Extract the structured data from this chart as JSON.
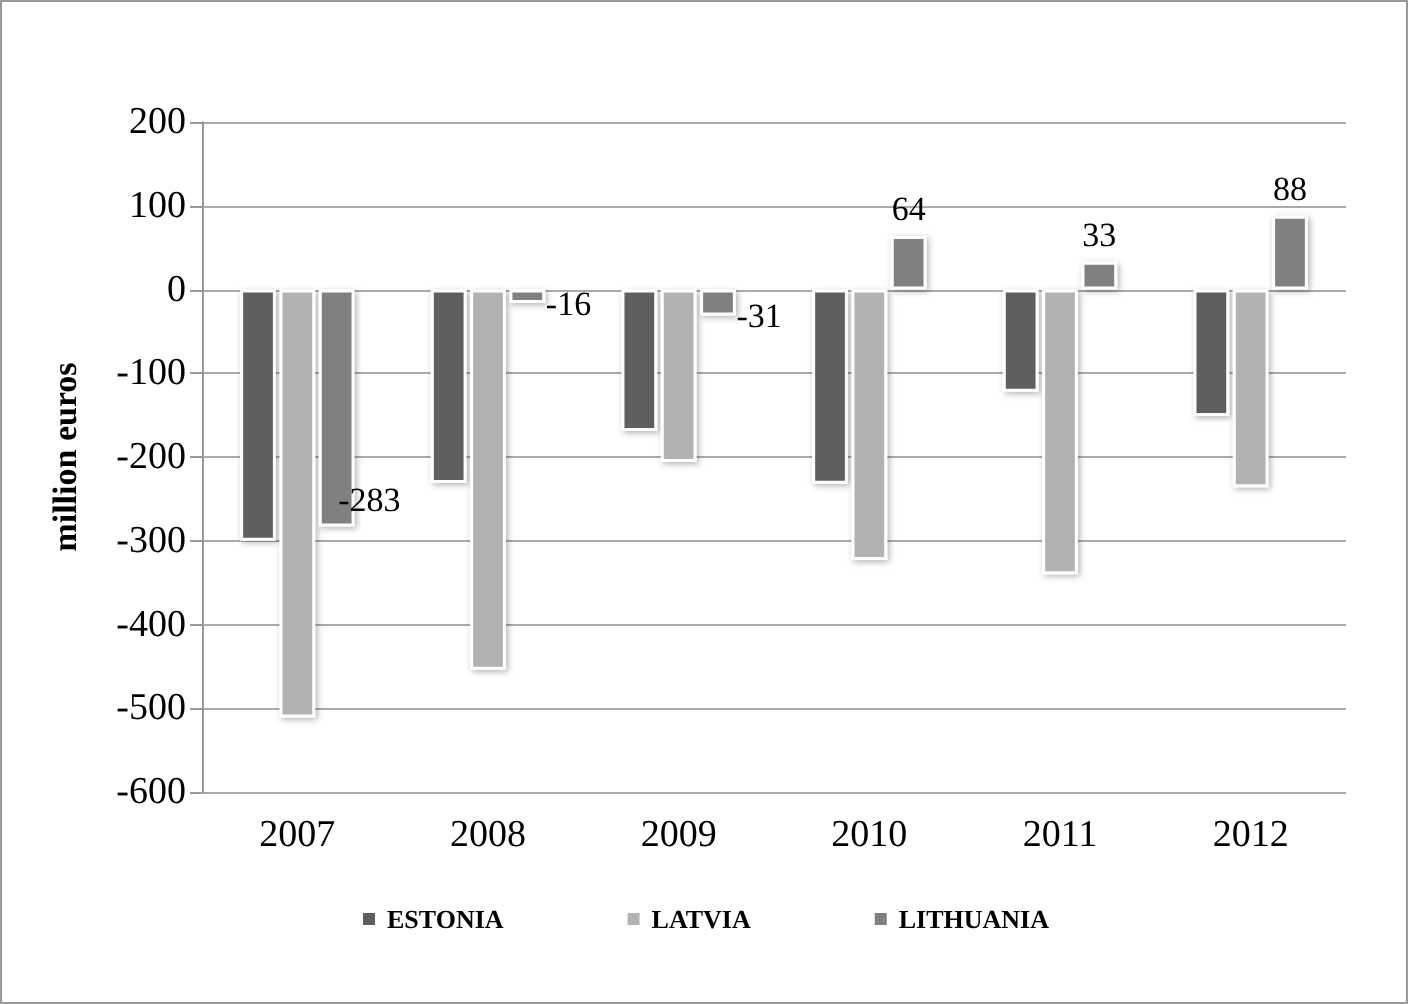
{
  "chart_data": {
    "type": "bar",
    "ylabel": "million euros",
    "categories": [
      "2007",
      "2008",
      "2009",
      "2010",
      "2011",
      "2012"
    ],
    "series": [
      {
        "name": "ESTONIA",
        "color": "#5f5f5f",
        "values": [
          -300,
          -231,
          -169,
          -232,
          -122,
          -151
        ]
      },
      {
        "name": "LATVIA",
        "color": "#b2b2b2",
        "values": [
          -511,
          -454,
          -206,
          -323,
          -340,
          -236
        ]
      },
      {
        "name": "LITHUANIA",
        "color": "#808080",
        "values": [
          -283,
          -16,
          -31,
          64,
          33,
          88
        ],
        "value_labels": [
          "-283",
          "-16",
          "-31",
          "64",
          "33",
          "88"
        ]
      }
    ],
    "ylim": [
      -600,
      200
    ],
    "yticks": [
      -600,
      -500,
      -400,
      -300,
      -200,
      -100,
      0,
      100,
      200
    ],
    "grid": "y",
    "legend": "bottom"
  }
}
